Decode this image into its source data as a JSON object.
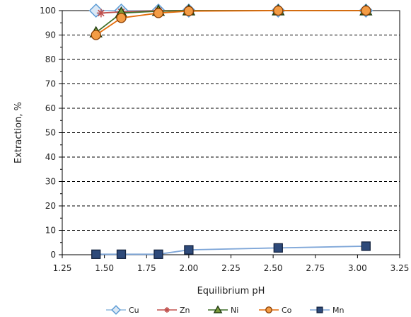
{
  "chart_data": {
    "type": "line",
    "title": "",
    "xlabel": "Equilibrium pH",
    "ylabel": "Extraction, %",
    "xlim": [
      1.25,
      3.25
    ],
    "ylim": [
      0,
      100
    ],
    "x_ticks": [
      "1.25",
      "1.50",
      "1.75",
      "2.00",
      "2.25",
      "2.50",
      "2.75",
      "3.00",
      "3.25"
    ],
    "y_ticks": [
      "0",
      "10",
      "20",
      "30",
      "40",
      "50",
      "60",
      "70",
      "80",
      "90",
      "100"
    ],
    "grid": "horizontal dashed",
    "legend_position": "bottom",
    "series": [
      {
        "name": "Cu",
        "color": "#5b9bd5",
        "marker": "diamond",
        "x": [
          1.45,
          1.6,
          1.82,
          2.0,
          2.53,
          3.05
        ],
        "y": [
          100,
          100,
          100,
          100,
          100,
          100
        ]
      },
      {
        "name": "Zn",
        "color": "#c0504d",
        "marker": "star",
        "x": [
          1.48,
          1.6,
          1.82,
          2.0,
          2.53,
          3.05
        ],
        "y": [
          99,
          99.5,
          100,
          100,
          100,
          100
        ]
      },
      {
        "name": "Ni",
        "color": "#2e5b1e",
        "marker": "triangle",
        "x": [
          1.45,
          1.6,
          1.82,
          2.0,
          2.53,
          3.05
        ],
        "y": [
          91,
          99,
          99.8,
          100,
          100,
          100
        ]
      },
      {
        "name": "Co",
        "color": "#e46c0a",
        "marker": "circle",
        "x": [
          1.45,
          1.6,
          1.82,
          2.0,
          2.53,
          3.05
        ],
        "y": [
          90,
          97,
          99,
          99.8,
          100,
          100
        ]
      },
      {
        "name": "Mn",
        "color": "#1f3864",
        "marker": "square",
        "x": [
          1.45,
          1.6,
          1.82,
          2.0,
          2.53,
          3.05
        ],
        "y": [
          0.2,
          0.2,
          0.2,
          2,
          2.8,
          3.5
        ]
      }
    ]
  }
}
